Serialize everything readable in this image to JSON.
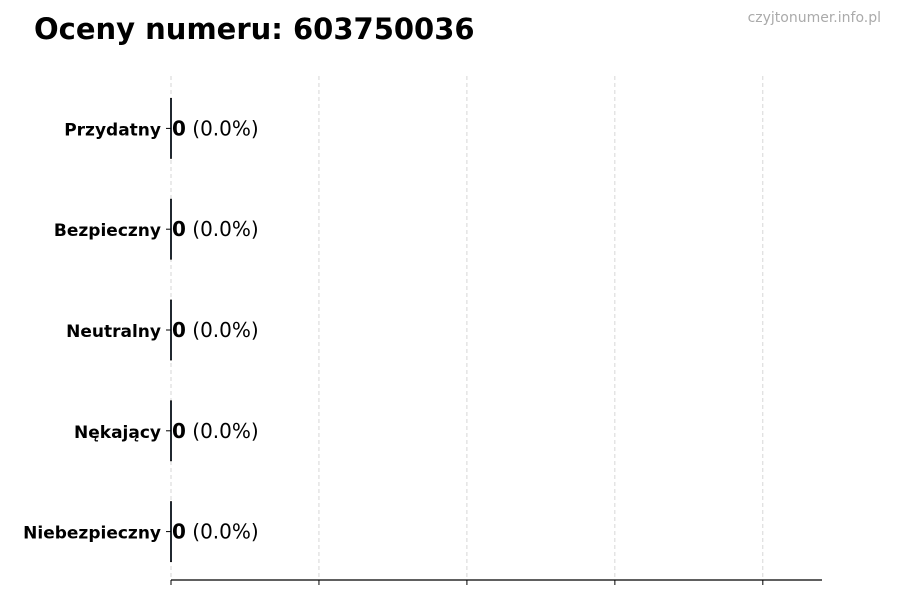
{
  "title": "Oceny numeru: 603750036",
  "watermark": "czyjtonumer.info.pl",
  "chart_data": {
    "type": "bar",
    "orientation": "horizontal",
    "title": "Oceny numeru: 603750036",
    "categories": [
      "Przydatny",
      "Bezpieczny",
      "Neutralny",
      "Nękający",
      "Niebezpieczny"
    ],
    "values": [
      0,
      0,
      0,
      0,
      0
    ],
    "data_labels": [
      "0 (0.0%)",
      "0 (0.0%)",
      "0 (0.0%)",
      "0 (0.0%)",
      "0 (0.0%)"
    ],
    "xlim": [
      0,
      4.4
    ],
    "xticks": [
      0,
      1,
      2,
      3,
      4
    ],
    "xtick_labels_shown": false,
    "grid": "x dashed",
    "colors": {
      "bar_edge": "#000000",
      "grid": "#cccccc",
      "axis": "#000000"
    }
  }
}
